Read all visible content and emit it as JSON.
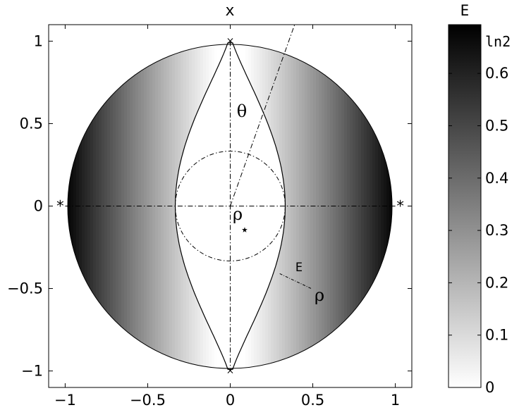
{
  "chart_data": {
    "type": "heatmap",
    "title": "x",
    "xlim": [
      -1.1,
      1.1
    ],
    "ylim": [
      -1.1,
      1.1
    ],
    "x_ticks": [
      -1,
      -0.5,
      0,
      0.5,
      1
    ],
    "x_tick_labels": [
      "−1",
      "−0.5",
      "0",
      "0.5",
      "1"
    ],
    "y_ticks": [
      1,
      0.5,
      0,
      -0.5,
      -1
    ],
    "y_tick_labels": [
      "1",
      "0.5",
      "0",
      "−0.5",
      "−1"
    ],
    "domain": "unit disk",
    "colormap": "gray (white = 0, black = ln2)",
    "annotations": {
      "theta": "θ",
      "rho_center": "ρ",
      "rho_star": "⋆",
      "E_label": "E",
      "rho_point": "ρ",
      "marker_x": "×",
      "marker_star": "*"
    },
    "inner_circle_radius": 0.333,
    "lens_boundary_half_width": 0.333,
    "colorbar": {
      "title": "E",
      "range": [
        0,
        0.6931
      ],
      "ticks": [
        0,
        0.1,
        0.2,
        0.3,
        0.4,
        0.5,
        0.6
      ],
      "tick_labels": [
        "0",
        "0.1",
        "0.2",
        "0.3",
        "0.4",
        "0.5",
        "0.6"
      ],
      "top_label": "ln2"
    }
  }
}
